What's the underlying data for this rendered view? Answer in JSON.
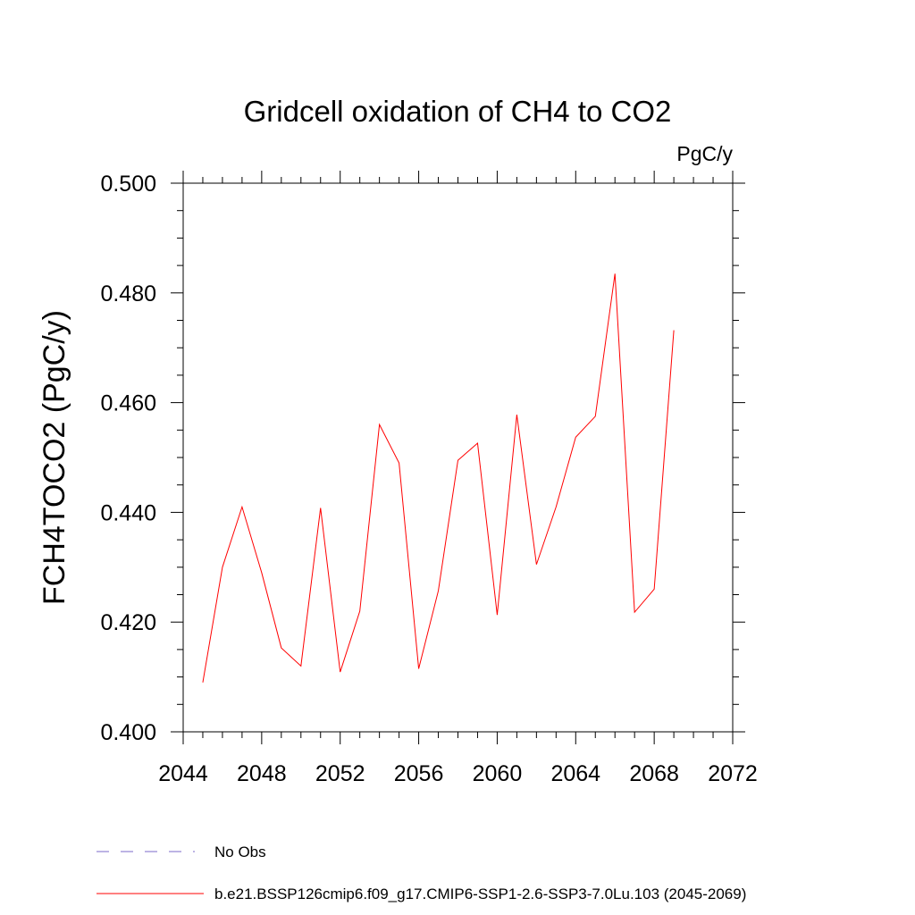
{
  "chart_data": {
    "type": "line",
    "title": "Gridcell oxidation of CH4 to CO2",
    "units_label": "PgC/y",
    "ylabel": "FCH4TOCO2  (PgC/y)",
    "xlabel": "",
    "xlim": [
      2044,
      2072
    ],
    "ylim": [
      0.4,
      0.5
    ],
    "x_major_ticks": [
      2044,
      2048,
      2052,
      2056,
      2060,
      2064,
      2068,
      2072
    ],
    "x_tick_labels": [
      "2044",
      "2048",
      "2052",
      "2056",
      "2060",
      "2064",
      "2068",
      "2072"
    ],
    "y_major_ticks": [
      0.4,
      0.42,
      0.44,
      0.46,
      0.48,
      0.5
    ],
    "y_tick_labels": [
      "0.400",
      "0.420",
      "0.440",
      "0.460",
      "0.480",
      "0.500"
    ],
    "grid": false,
    "legend_position": "bottom",
    "legend": [
      {
        "label": "No Obs",
        "style": "dashed",
        "color": "#7b68c8"
      },
      {
        "label": "b.e21.BSSP126cmip6.f09_g17.CMIP6-SSP1-2.6-SSP3-7.0Lu.103 (2045-2069)",
        "style": "solid",
        "color": "#ff0000"
      }
    ],
    "series": [
      {
        "color": "#ff0000",
        "x": [
          2045,
          2046,
          2047,
          2048,
          2049,
          2050,
          2051,
          2052,
          2053,
          2054,
          2055,
          2056,
          2057,
          2058,
          2059,
          2060,
          2061,
          2062,
          2063,
          2064,
          2065,
          2066,
          2067,
          2068,
          2069
        ],
        "y": [
          0.409,
          0.43,
          0.441,
          0.429,
          0.4153,
          0.412,
          0.4408,
          0.4109,
          0.422,
          0.456,
          0.449,
          0.4115,
          0.4257,
          0.4495,
          0.4526,
          0.4213,
          0.4578,
          0.4305,
          0.441,
          0.4537,
          0.4575,
          0.4835,
          0.4218,
          0.426,
          0.4732
        ]
      }
    ]
  }
}
